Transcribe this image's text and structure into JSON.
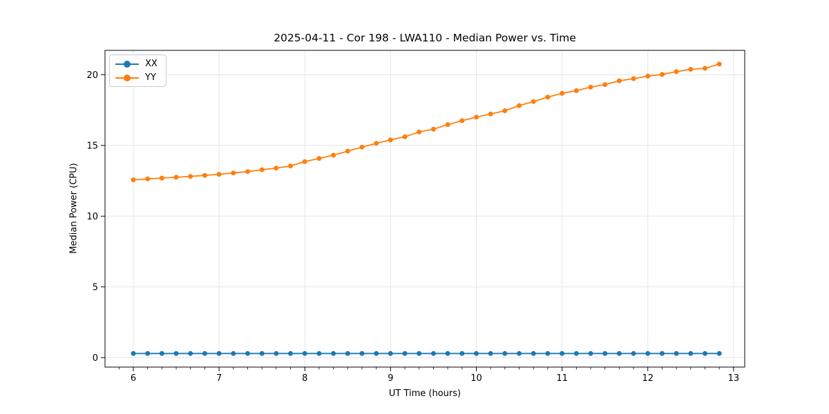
{
  "chart_data": {
    "type": "line",
    "title": "2025-04-11 - Cor 198 - LWA110 - Median Power vs. Time",
    "xlabel": "UT Time (hours)",
    "ylabel": "Median Power (CPU)",
    "xlim": [
      5.67,
      13.13
    ],
    "ylim": [
      -0.67,
      21.72
    ],
    "x_ticks": [
      6,
      7,
      8,
      9,
      10,
      11,
      12,
      13
    ],
    "y_ticks": [
      0,
      5,
      10,
      15,
      20
    ],
    "x_minor_tick_step": 0.1666667,
    "grid": true,
    "legend_position": "upper-left",
    "x": [
      6.0,
      6.1667,
      6.3333,
      6.5,
      6.6667,
      6.8333,
      7.0,
      7.1667,
      7.3333,
      7.5,
      7.6667,
      7.8333,
      8.0,
      8.1667,
      8.3333,
      8.5,
      8.6667,
      8.8333,
      9.0,
      9.1667,
      9.3333,
      9.5,
      9.6667,
      9.8333,
      10.0,
      10.1667,
      10.3333,
      10.5,
      10.6667,
      10.8333,
      11.0,
      11.1667,
      11.3333,
      11.5,
      11.6667,
      11.8333,
      12.0,
      12.1667,
      12.3333,
      12.5,
      12.6667,
      12.8333
    ],
    "series": [
      {
        "name": "XX",
        "color": "#1f77b4",
        "values": [
          0.29,
          0.29,
          0.29,
          0.29,
          0.29,
          0.29,
          0.29,
          0.29,
          0.29,
          0.29,
          0.29,
          0.29,
          0.29,
          0.29,
          0.29,
          0.29,
          0.29,
          0.29,
          0.29,
          0.29,
          0.29,
          0.29,
          0.29,
          0.29,
          0.29,
          0.29,
          0.29,
          0.29,
          0.29,
          0.29,
          0.29,
          0.29,
          0.29,
          0.29,
          0.29,
          0.29,
          0.29,
          0.29,
          0.29,
          0.29,
          0.29,
          0.29
        ]
      },
      {
        "name": "YY",
        "color": "#ff7f0e",
        "values": [
          12.57,
          12.63,
          12.69,
          12.75,
          12.81,
          12.88,
          12.96,
          13.05,
          13.15,
          13.28,
          13.4,
          13.55,
          13.85,
          14.08,
          14.31,
          14.6,
          14.88,
          15.15,
          15.39,
          15.61,
          15.95,
          16.15,
          16.47,
          16.75,
          17.0,
          17.22,
          17.45,
          17.82,
          18.1,
          18.42,
          18.68,
          18.87,
          19.12,
          19.3,
          19.57,
          19.72,
          19.9,
          20.02,
          20.22,
          20.38,
          20.45,
          20.75
        ]
      }
    ]
  }
}
